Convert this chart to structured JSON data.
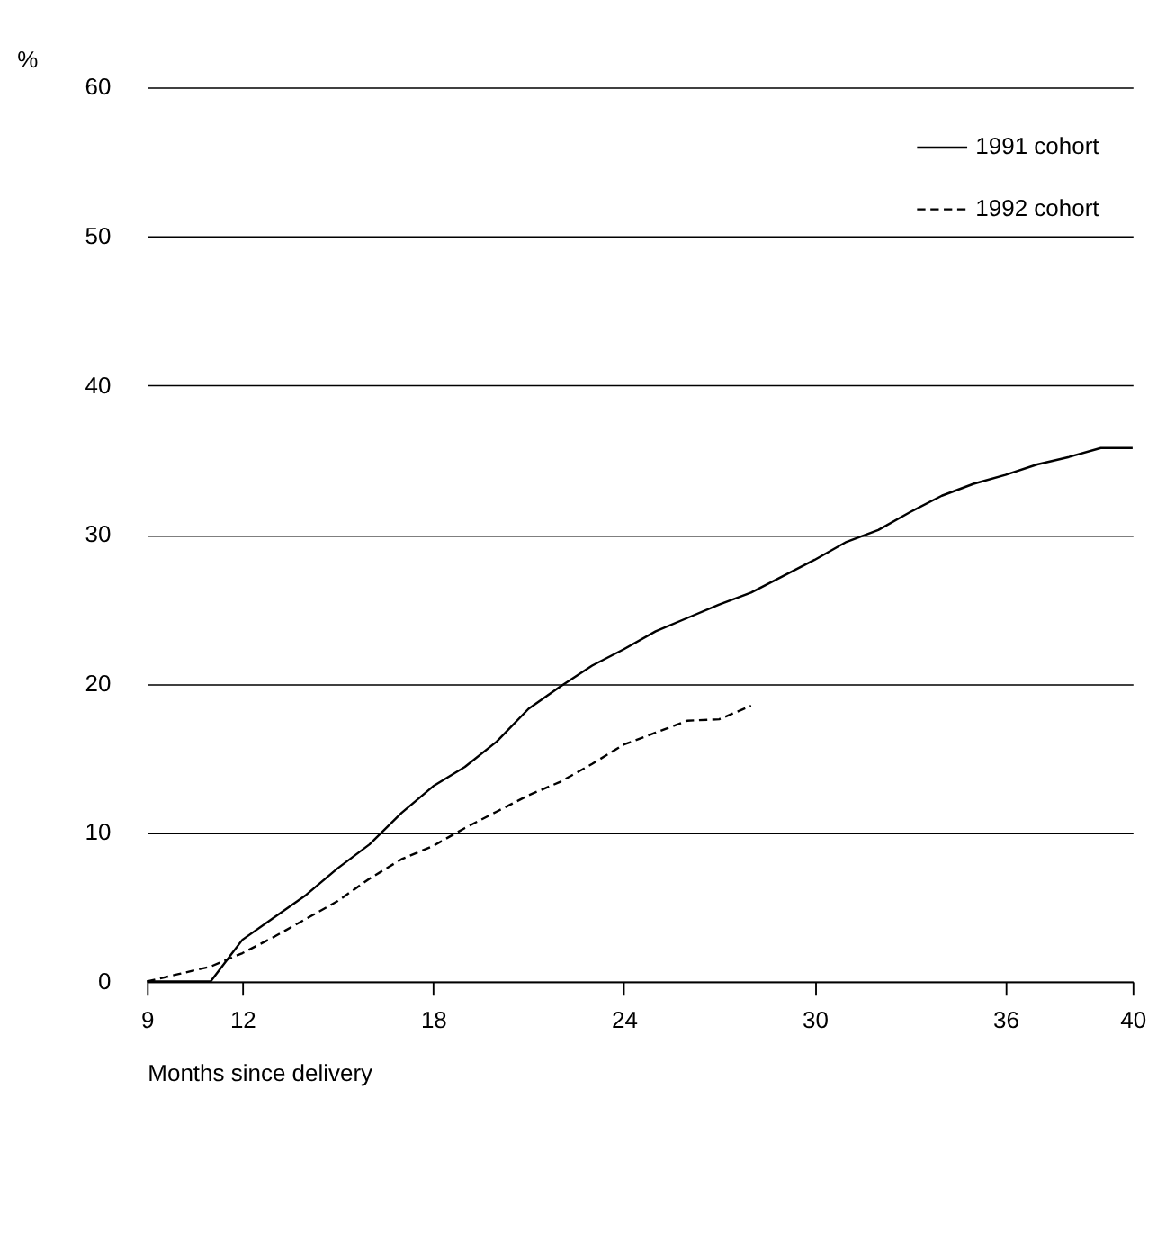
{
  "chart_data": {
    "type": "line",
    "ylabel": "%",
    "xlabel": "Months since delivery",
    "xlim": [
      9,
      40
    ],
    "xticks": [
      9,
      12,
      18,
      24,
      30,
      36,
      40
    ],
    "ylim": [
      0,
      60
    ],
    "yticks": [
      0,
      10,
      20,
      30,
      40,
      50,
      60
    ],
    "grid": "y",
    "legend": "top right",
    "x": [
      9,
      10,
      11,
      12,
      13,
      14,
      15,
      16,
      17,
      18,
      19,
      20,
      21,
      22,
      23,
      24,
      25,
      26,
      27,
      28,
      29,
      30,
      31,
      32,
      33,
      34,
      35,
      36,
      37,
      38,
      39,
      40
    ],
    "series": [
      {
        "name": "1991 cohort",
        "color": "#000000",
        "line_style": "solid",
        "values": [
          0,
          0,
          0,
          2.8,
          4.3,
          5.8,
          7.6,
          9.2,
          11.3,
          13.1,
          14.4,
          16.1,
          18.3,
          19.8,
          21.2,
          22.3,
          23.5,
          24.4,
          25.3,
          26.1,
          27.2,
          28.3,
          29.5,
          30.3,
          31.5,
          32.6,
          33.4,
          34.0,
          34.7,
          35.2,
          35.8,
          35.8
        ]
      },
      {
        "name": "1992 cohort",
        "color": "#000000",
        "line_style": "dashed",
        "x": [
          9,
          10,
          11,
          12,
          13,
          14,
          15,
          16,
          17,
          18,
          19,
          20,
          21,
          22,
          23,
          24,
          25,
          26,
          27,
          28
        ],
        "values": [
          0,
          0.5,
          1.0,
          1.9,
          3.0,
          4.2,
          5.4,
          6.9,
          8.2,
          9.1,
          10.3,
          11.4,
          12.5,
          13.4,
          14.6,
          15.9,
          16.7,
          17.5,
          17.6,
          18.5
        ]
      }
    ]
  }
}
